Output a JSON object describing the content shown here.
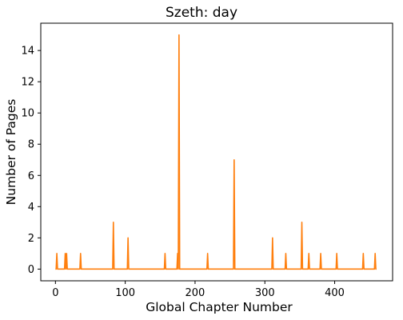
{
  "chart_data": {
    "type": "line",
    "title": "Szeth: day",
    "xlabel": "Global Chapter Number",
    "ylabel": "Number of Pages",
    "xlim": [
      -21,
      483
    ],
    "ylim": [
      -0.75,
      15.75
    ],
    "xticks": [
      0,
      100,
      200,
      300,
      400
    ],
    "yticks": [
      0,
      2,
      4,
      6,
      8,
      10,
      12,
      14
    ],
    "grid": false,
    "legend": "none",
    "x_range": [
      0,
      460
    ],
    "baseline": 0,
    "series": [
      {
        "color": "#ff7f0e",
        "spikes": [
          {
            "x": 2,
            "y": 1
          },
          {
            "x": 14,
            "y": 1
          },
          {
            "x": 16,
            "y": 1
          },
          {
            "x": 36,
            "y": 1
          },
          {
            "x": 83,
            "y": 3
          },
          {
            "x": 104,
            "y": 2
          },
          {
            "x": 157,
            "y": 1
          },
          {
            "x": 175,
            "y": 1
          },
          {
            "x": 177,
            "y": 15
          },
          {
            "x": 218,
            "y": 1
          },
          {
            "x": 256,
            "y": 7
          },
          {
            "x": 311,
            "y": 2
          },
          {
            "x": 330,
            "y": 1
          },
          {
            "x": 353,
            "y": 3
          },
          {
            "x": 363,
            "y": 1
          },
          {
            "x": 380,
            "y": 1
          },
          {
            "x": 403,
            "y": 1
          },
          {
            "x": 441,
            "y": 1
          },
          {
            "x": 458,
            "y": 1
          }
        ]
      }
    ]
  }
}
